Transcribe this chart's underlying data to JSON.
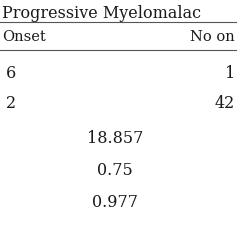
{
  "title": "Progressive Myelomalac",
  "col1_header": "Onset",
  "col2_header": "No on",
  "rows": [
    [
      "6",
      "1"
    ],
    [
      "2",
      "42"
    ]
  ],
  "centered_values": [
    "18.857",
    "0.75",
    "0.977"
  ],
  "bg_color": "#ffffff",
  "text_color": "#1a1a1a",
  "font_size": 10.5,
  "title_font_size": 11.5,
  "line_color": "#555555",
  "line_width": 0.8
}
